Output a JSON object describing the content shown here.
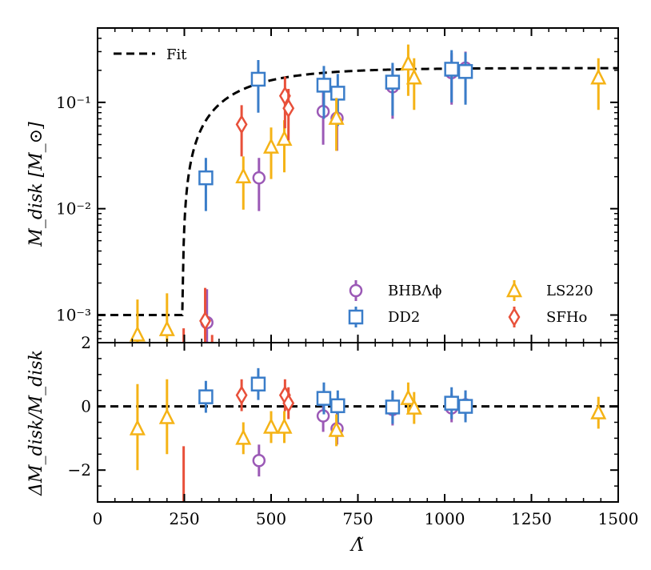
{
  "chart_data": {
    "type": "scatter",
    "x_label": "Λ̃",
    "top_panel": {
      "y_label": "M_disk [M_⊙]",
      "y_scale": "log",
      "y_range": [
        0.00055,
        0.5
      ],
      "y_tick_labels": [
        "10⁻³",
        "10⁻²",
        "10⁻¹"
      ],
      "y_tick_values": [
        0.001,
        0.01,
        0.1
      ]
    },
    "bottom_panel": {
      "y_label": "ΔM_disk/M_disk",
      "y_range": [
        -3,
        2
      ],
      "y_tick_labels": [
        "−2",
        "0",
        "2"
      ],
      "y_tick_values": [
        -2,
        0,
        2
      ]
    },
    "x_range": [
      0,
      1500
    ],
    "x_tick_labels": [
      "0",
      "250",
      "500",
      "750",
      "1000",
      "1250",
      "1500"
    ],
    "x_tick_values": [
      0,
      250,
      500,
      750,
      1000,
      1250,
      1500
    ],
    "fit": {
      "name": "Fit",
      "color": "#000000",
      "floor": 0.001,
      "threshold": 245,
      "max": 0.21,
      "scale": 175
    },
    "legend_fit": "Fit",
    "series": [
      {
        "name": "BHBΛϕ",
        "marker": "circle",
        "color": "#9b59b6",
        "points": [
          {
            "x": 315,
            "y": 0.00085,
            "ylo": 0.0003,
            "yhi": 0.00175,
            "dy": null,
            "dylo": null,
            "dyhi": null
          },
          {
            "x": 465,
            "y": 0.0195,
            "ylo": 0.0095,
            "yhi": 0.03,
            "dy": -1.7,
            "dylo": -2.2,
            "dyhi": -1.2
          },
          {
            "x": 650,
            "y": 0.082,
            "ylo": 0.04,
            "yhi": 0.13,
            "dy": -0.3,
            "dylo": -0.8,
            "dyhi": 0.2
          },
          {
            "x": 690,
            "y": 0.071,
            "ylo": 0.035,
            "yhi": 0.115,
            "dy": -0.7,
            "dylo": -1.2,
            "dyhi": -0.2
          },
          {
            "x": 850,
            "y": 0.14,
            "ylo": 0.07,
            "yhi": 0.22,
            "dy": -0.1,
            "dylo": -0.6,
            "dyhi": 0.4
          },
          {
            "x": 1020,
            "y": 0.19,
            "ylo": 0.095,
            "yhi": 0.29,
            "dy": -0.05,
            "dylo": -0.5,
            "dyhi": 0.4
          },
          {
            "x": 1060,
            "y": 0.21,
            "ylo": 0.1,
            "yhi": 0.3,
            "dy": 0.05,
            "dylo": -0.4,
            "dyhi": 0.5
          }
        ]
      },
      {
        "name": "DD2",
        "marker": "square",
        "color": "#3a7dc9",
        "points": [
          {
            "x": 312,
            "y": 0.0195,
            "ylo": 0.0095,
            "yhi": 0.03,
            "dy": 0.3,
            "dylo": -0.2,
            "dyhi": 0.8
          },
          {
            "x": 463,
            "y": 0.165,
            "ylo": 0.08,
            "yhi": 0.25,
            "dy": 0.7,
            "dylo": 0.2,
            "dyhi": 1.2
          },
          {
            "x": 652,
            "y": 0.145,
            "ylo": 0.07,
            "yhi": 0.22,
            "dy": 0.25,
            "dylo": -0.25,
            "dyhi": 0.75
          },
          {
            "x": 692,
            "y": 0.122,
            "ylo": 0.06,
            "yhi": 0.185,
            "dy": 0.02,
            "dylo": -0.5,
            "dyhi": 0.5
          },
          {
            "x": 850,
            "y": 0.155,
            "ylo": 0.075,
            "yhi": 0.235,
            "dy": -0.02,
            "dylo": -0.55,
            "dyhi": 0.5
          },
          {
            "x": 1020,
            "y": 0.205,
            "ylo": 0.1,
            "yhi": 0.31,
            "dy": 0.1,
            "dylo": -0.4,
            "dyhi": 0.6
          },
          {
            "x": 1060,
            "y": 0.195,
            "ylo": 0.095,
            "yhi": 0.295,
            "dy": 0.0,
            "dylo": -0.5,
            "dyhi": 0.5
          }
        ]
      },
      {
        "name": "LS220",
        "marker": "triangle",
        "color": "#f5b316",
        "points": [
          {
            "x": 115,
            "y": 0.00065,
            "ylo": 0.0003,
            "yhi": 0.0014,
            "dy": -0.7,
            "dylo": -2.0,
            "dyhi": 0.7
          },
          {
            "x": 200,
            "y": 0.00073,
            "ylo": 0.00035,
            "yhi": 0.0016,
            "dy": -0.35,
            "dylo": -1.5,
            "dyhi": 0.85
          },
          {
            "x": 420,
            "y": 0.02,
            "ylo": 0.0098,
            "yhi": 0.031,
            "dy": -1.0,
            "dylo": -1.5,
            "dyhi": -0.5
          },
          {
            "x": 500,
            "y": 0.038,
            "ylo": 0.019,
            "yhi": 0.058,
            "dy": -0.65,
            "dylo": -1.15,
            "dyhi": -0.15
          },
          {
            "x": 538,
            "y": 0.045,
            "ylo": 0.022,
            "yhi": 0.068,
            "dy": -0.65,
            "dylo": -1.15,
            "dyhi": -0.15
          },
          {
            "x": 688,
            "y": 0.071,
            "ylo": 0.035,
            "yhi": 0.11,
            "dy": -0.75,
            "dylo": -1.25,
            "dyhi": -0.25
          },
          {
            "x": 895,
            "y": 0.23,
            "ylo": 0.115,
            "yhi": 0.35,
            "dy": 0.25,
            "dylo": -0.25,
            "dyhi": 0.75
          },
          {
            "x": 912,
            "y": 0.17,
            "ylo": 0.085,
            "yhi": 0.26,
            "dy": -0.05,
            "dylo": -0.55,
            "dyhi": 0.45
          },
          {
            "x": 1443,
            "y": 0.17,
            "ylo": 0.085,
            "yhi": 0.26,
            "dy": -0.2,
            "dylo": -0.7,
            "dyhi": 0.3
          }
        ]
      },
      {
        "name": "SFHo",
        "marker": "diamond",
        "color": "#e8503a",
        "points": [
          {
            "x": 248,
            "y": null,
            "ylo": 0.0003,
            "yhi": 0.00075,
            "dy": null,
            "dylo": -3.5,
            "dyhi": -1.25
          },
          {
            "x": 310,
            "y": 0.00088,
            "ylo": 0.0003,
            "yhi": 0.0018,
            "dy": null,
            "dylo": null,
            "dyhi": null
          },
          {
            "x": 330,
            "y": null,
            "ylo": 0.0003,
            "yhi": 0.00065,
            "dy": null,
            "dylo": null,
            "dyhi": null
          },
          {
            "x": 415,
            "y": 0.062,
            "ylo": 0.031,
            "yhi": 0.094,
            "dy": 0.35,
            "dylo": -0.15,
            "dyhi": 0.85
          },
          {
            "x": 540,
            "y": 0.115,
            "ylo": 0.057,
            "yhi": 0.175,
            "dy": 0.35,
            "dylo": -0.15,
            "dyhi": 0.85
          },
          {
            "x": 550,
            "y": 0.088,
            "ylo": 0.044,
            "yhi": 0.134,
            "dy": 0.1,
            "dylo": -0.4,
            "dyhi": 0.6
          }
        ]
      }
    ],
    "legend_entries": [
      {
        "label": "BHBΛϕ",
        "marker": "circle",
        "color": "#9b59b6"
      },
      {
        "label": "LS220",
        "marker": "triangle",
        "color": "#f5b316"
      },
      {
        "label": "DD2",
        "marker": "square",
        "color": "#3a7dc9"
      },
      {
        "label": "SFHo",
        "marker": "diamond",
        "color": "#e8503a"
      }
    ]
  }
}
